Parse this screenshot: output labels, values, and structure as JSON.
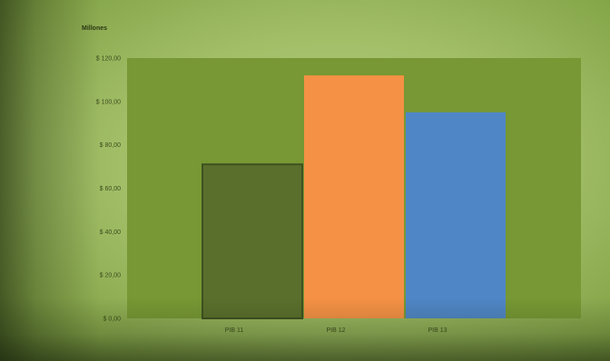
{
  "chart_data": {
    "type": "bar",
    "ylabel": "Millones",
    "categories": [
      "PIB 11",
      "PIB 12",
      "PIB 13"
    ],
    "values": [
      71,
      112,
      95
    ],
    "colors": [
      "#5a6f2c",
      "#f59145",
      "#4f86c6"
    ],
    "ylim": [
      0,
      120
    ],
    "yticks": [
      0,
      20,
      40,
      60,
      80,
      100,
      120
    ],
    "ytick_labels": [
      "$ 0,00",
      "$ 20,00",
      "$ 40,00",
      "$ 60,00",
      "$ 80,00",
      "$ 100,00",
      "$ 120,00"
    ],
    "plot_background": "#779834",
    "grid": false,
    "legend": "none"
  }
}
